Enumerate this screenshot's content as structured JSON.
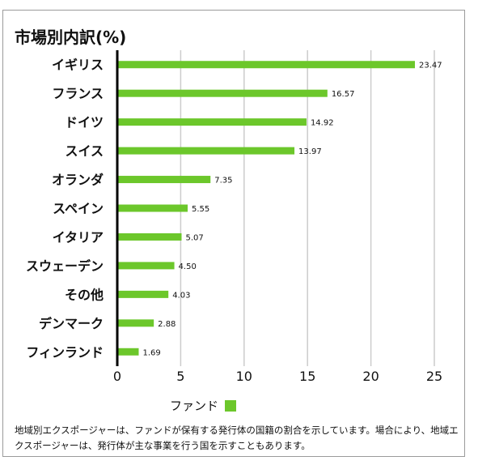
{
  "title": "市場別内訳(%)",
  "legend": {
    "label": "ファンド"
  },
  "footnote": "地域別エクスポージャーは、ファンドが保有する発行体の国籍の割合を示しています。場合により、地域エクスポージャーは、発行体が主な事業を行う国を示すこともあります。",
  "colors": {
    "bar": "#6cc72b",
    "axis": "#000000",
    "grid": "#cccccc"
  },
  "chart_data": {
    "type": "bar",
    "orientation": "horizontal",
    "categories": [
      "イギリス",
      "フランス",
      "ドイツ",
      "スイス",
      "オランダ",
      "スペイン",
      "イタリア",
      "スウェーデン",
      "その他",
      "デンマーク",
      "フィンランド"
    ],
    "series": [
      {
        "name": "ファンド",
        "values": [
          23.47,
          16.57,
          14.92,
          13.97,
          7.35,
          5.55,
          5.07,
          4.5,
          4.03,
          2.88,
          1.69
        ]
      }
    ],
    "data_labels": [
      "23.47",
      "16.57",
      "14.92",
      "13.97",
      "7.35",
      "5.55",
      "5.07",
      "4.50",
      "4.03",
      "2.88",
      "1.69"
    ],
    "xlim": [
      0,
      25
    ],
    "xticks": [
      0,
      5,
      10,
      15,
      20,
      25
    ],
    "grid": true,
    "legend_position": "bottom"
  }
}
